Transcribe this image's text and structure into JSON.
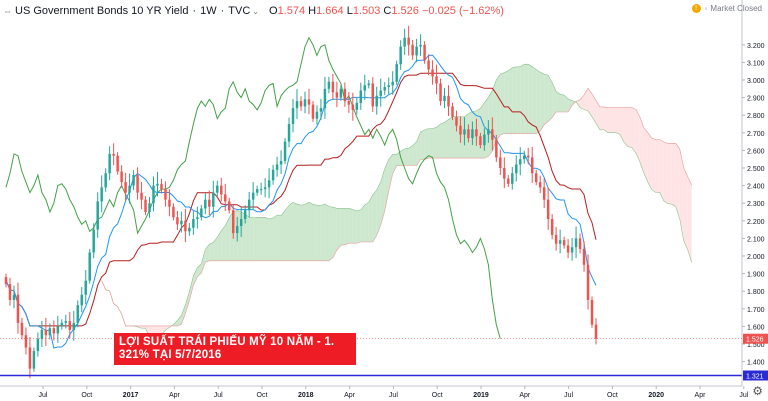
{
  "header": {
    "title": "US Government Bonds 10 YR Yield",
    "interval": "1W",
    "source": "TVC",
    "open_label": "O",
    "open": "1.574",
    "high_label": "H",
    "high": "1.664",
    "low_label": "L",
    "low": "1.503",
    "close_label": "C",
    "close": "1.526",
    "change": "−0.025 (−1.62%)"
  },
  "status": {
    "text": "Market Closed",
    "badge": "!"
  },
  "annotation": {
    "line1": "LỢI SUẤT TRÁI PHIẾU MỸ 10 NĂM - 1.",
    "line2": "321% TẠI 5/7/2016"
  },
  "chart_data": {
    "type": "candlestick",
    "y_ticks": [
      "3.200",
      "3.100",
      "3.000",
      "2.900",
      "2.800",
      "2.700",
      "2.600",
      "2.500",
      "2.400",
      "2.300",
      "2.200",
      "2.100",
      "2.000",
      "1.900",
      "1.800",
      "1.700",
      "1.600",
      "1.500",
      "1.400"
    ],
    "ylim": [
      1.3,
      3.28
    ],
    "x_ticks": [
      "Jul",
      "Oct",
      "2017",
      "Apr",
      "Jul",
      "Oct",
      "2018",
      "Apr",
      "Jul",
      "Oct",
      "2019",
      "Apr",
      "Jul",
      "Oct",
      "2020",
      "Apr",
      "Jul"
    ],
    "price_label": "1.526",
    "line_label": "1.321",
    "horizontal_line_value": 1.321,
    "colors": {
      "up": "#26a69a",
      "down": "#ef5350",
      "conversion": "#2196f3",
      "base": "#b71c1c",
      "lagging": "#43a047",
      "cloud_up": "#a5d6a7",
      "cloud_down": "#ffcdd2",
      "hline": "#2b2bd6"
    },
    "closes": [
      1.84,
      1.75,
      1.78,
      1.62,
      1.55,
      1.48,
      1.36,
      1.46,
      1.53,
      1.58,
      1.55,
      1.59,
      1.56,
      1.6,
      1.62,
      1.63,
      1.58,
      1.62,
      1.72,
      1.78,
      1.86,
      2.02,
      2.15,
      2.31,
      2.39,
      2.47,
      2.58,
      2.57,
      2.48,
      2.42,
      2.36,
      2.4,
      2.46,
      2.36,
      2.32,
      2.25,
      2.3,
      2.4,
      2.41,
      2.38,
      2.32,
      2.28,
      2.22,
      2.18,
      2.2,
      2.14,
      2.16,
      2.21,
      2.22,
      2.27,
      2.32,
      2.28,
      2.36,
      2.4,
      2.35,
      2.31,
      2.26,
      2.13,
      2.17,
      2.21,
      2.26,
      2.32,
      2.36,
      2.38,
      2.38,
      2.39,
      2.43,
      2.49,
      2.52,
      2.54,
      2.65,
      2.75,
      2.84,
      2.88,
      2.85,
      2.89,
      2.86,
      2.78,
      2.82,
      2.84,
      2.95,
      2.99,
      2.93,
      2.9,
      2.95,
      2.88,
      2.86,
      2.83,
      2.87,
      2.94,
      2.97,
      2.98,
      2.85,
      2.91,
      2.94,
      2.96,
      2.97,
      2.99,
      3.09,
      3.19,
      3.24,
      3.2,
      3.14,
      3.19,
      3.2,
      3.11,
      3.06,
      3.02,
      2.98,
      2.88,
      2.91,
      2.85,
      2.79,
      2.74,
      2.69,
      2.72,
      2.67,
      2.72,
      2.68,
      2.63,
      2.69,
      2.72,
      2.66,
      2.56,
      2.5,
      2.44,
      2.41,
      2.47,
      2.52,
      2.55,
      2.57,
      2.56,
      2.47,
      2.42,
      2.39,
      2.32,
      2.21,
      2.12,
      2.07,
      2.09,
      2.06,
      2.02,
      2.05,
      2.1,
      2.04,
      1.95,
      1.75,
      1.61,
      1.53
    ]
  }
}
